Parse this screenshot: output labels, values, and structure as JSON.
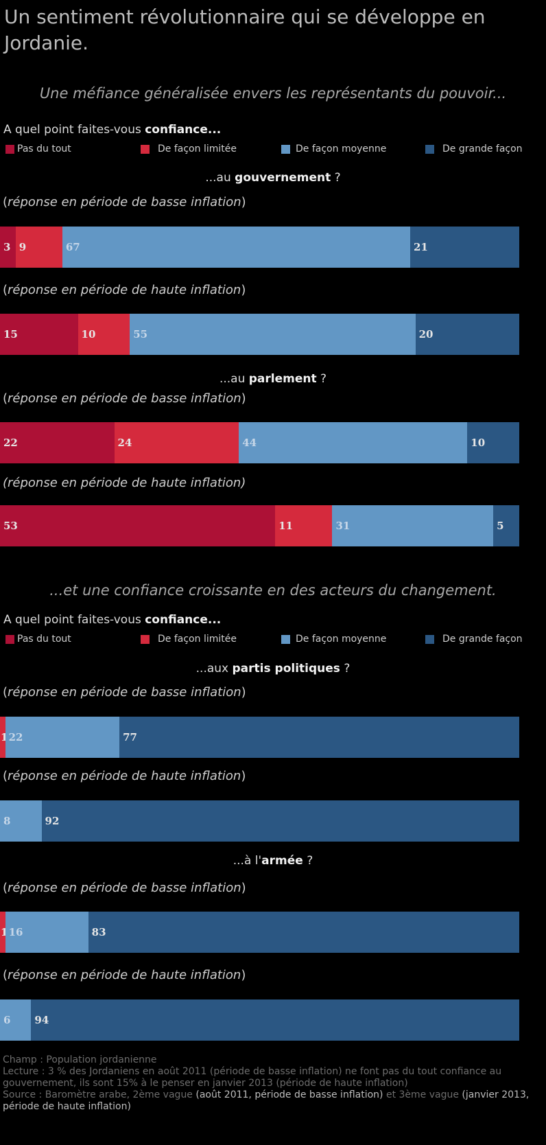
{
  "title": "Un sentiment révolutionnaire qui se développe en Jordanie.",
  "colors": {
    "pas_du_tout": "#ad1136",
    "limitee": "#d52a3d",
    "moyenne": "#6297c5",
    "grande": "#2b5783",
    "label_dark": "#e6e6e6",
    "label_light": "#c5d6e8"
  },
  "part1": {
    "subtitle": "Une méfiance généralisée envers les représentants du pouvoir...",
    "question_prefix": "A quel point faites-vous ",
    "question_bold": "confiance...",
    "legend": [
      "Pas du tout",
      "De façon limitée",
      "De façon moyenne",
      "De grande façon"
    ],
    "section1": {
      "prefix": "...au ",
      "bold": "gouvernement",
      "suffix": " ?"
    },
    "section2": {
      "prefix": "...au ",
      "bold": "parlement",
      "suffix": " ?"
    }
  },
  "part2": {
    "subtitle": "...et une confiance croissante en des acteurs du changement.",
    "question_prefix": "A quel point faites-vous ",
    "question_bold": "confiance...",
    "legend": [
      "Pas du tout",
      "De façon limitée",
      "De façon moyenne",
      "De grande façon"
    ],
    "section1": {
      "prefix": "...aux ",
      "bold": "partis politiques",
      "suffix": " ?"
    },
    "section2": {
      "prefix": "...à l'",
      "bold": "armée",
      "suffix": "  ?"
    }
  },
  "period": {
    "open": "(",
    "close": ")",
    "basse": "réponse en période de basse inflation",
    "haute": "réponse en période de haute inflation",
    "haute_full": "(réponse en période de haute inflation)"
  },
  "chart_data": {
    "type": "bar",
    "stacked": true,
    "orientation": "horizontal",
    "categories": [
      "gouvernement — basse inflation",
      "gouvernement — haute inflation",
      "parlement — basse inflation",
      "parlement — haute inflation",
      "partis politiques — basse inflation",
      "partis politiques — haute inflation",
      "armée — basse inflation",
      "armée — haute inflation"
    ],
    "series": [
      {
        "name": "Pas du tout",
        "values": [
          3,
          15,
          22,
          53,
          0,
          0,
          0,
          0
        ]
      },
      {
        "name": "De façon limitée",
        "values": [
          9,
          10,
          24,
          11,
          1,
          0,
          1,
          0
        ]
      },
      {
        "name": "De façon moyenne",
        "values": [
          67,
          55,
          44,
          31,
          22,
          8,
          16,
          6
        ]
      },
      {
        "name": "De grande façon",
        "values": [
          21,
          20,
          10,
          5,
          77,
          92,
          83,
          94
        ]
      }
    ],
    "bar_labels": [
      [
        "3",
        "9",
        "67",
        "21"
      ],
      [
        "15",
        "10",
        "55",
        "20"
      ],
      [
        "22",
        "24",
        "44",
        "10"
      ],
      [
        "53",
        "11",
        "31",
        "5"
      ],
      [
        "",
        "1",
        "22",
        "77"
      ],
      [
        "",
        "",
        "8",
        "92"
      ],
      [
        "",
        "1",
        "16",
        "83"
      ],
      [
        "",
        "",
        "6",
        "94"
      ]
    ],
    "xlim": [
      0,
      100
    ]
  },
  "footer": {
    "champ": "Champ : Population jordanienne",
    "lecture": "Lecture :  3 % des Jordaniens en août 2011 (période de basse inflation) ne font pas du tout confiance au gouvernement, ils sont 15% à le penser en janvier 2013 (période de haute inflation)",
    "source_prefix": "Source : Baromètre arabe, 2ème vague ",
    "source_hl1": "(août 2011, période de basse inflation)",
    "source_mid": " et 3ème vague ",
    "source_hl2": "(janvier 2013, période de haute inflation)"
  }
}
